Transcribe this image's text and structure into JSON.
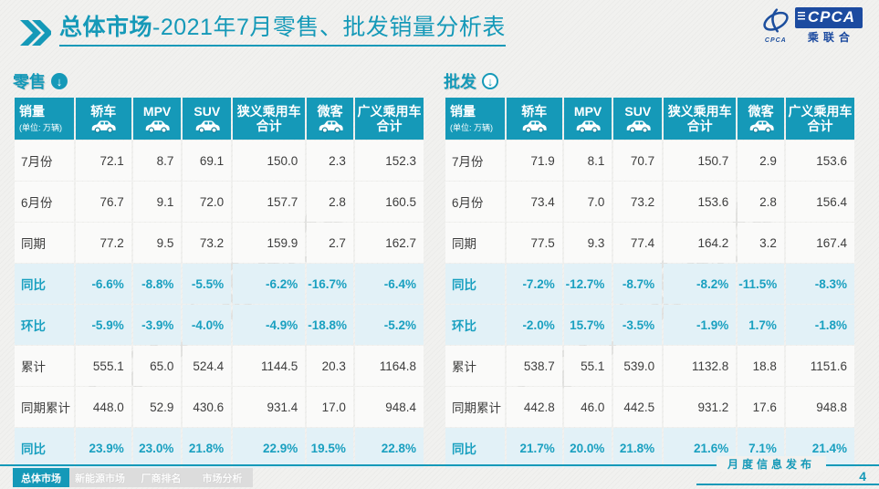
{
  "title": {
    "bold": "总体市场",
    "rest": "-2021年7月零售、批发销量分析表"
  },
  "logo": {
    "swirl_caption": "CPCA",
    "acronym": "CPCA",
    "cn_name": "乘联合"
  },
  "colors": {
    "accent": "#1599b8",
    "percent_row_bg": "#e2f1f7",
    "logo_blue": "#1c4ba0"
  },
  "watermark": "CPCA乘联会",
  "columns": {
    "sales_label": "销量",
    "sales_unit": "(单位: 万辆)",
    "cols": [
      {
        "name": "sedan",
        "label": "轿车",
        "icon": "sedan-car-icon"
      },
      {
        "name": "mpv",
        "label": "MPV",
        "icon": "mpv-car-icon"
      },
      {
        "name": "suv",
        "label": "SUV",
        "icon": "suv-car-icon"
      },
      {
        "name": "narrow-pv-total",
        "label": "狭义乘用车",
        "label2": "合计"
      },
      {
        "name": "microvan",
        "label": "微客",
        "icon": "microvan-icon"
      },
      {
        "name": "broad-pv-total",
        "label": "广义乘用车",
        "label2": "合计"
      }
    ]
  },
  "tables": [
    {
      "id": "retail",
      "section_label": "零售",
      "arrow_icon": "down-arrow-filled-circle-icon",
      "rows": [
        {
          "label": "7月份",
          "type": "normal",
          "values": [
            "72.1",
            "8.7",
            "69.1",
            "150.0",
            "2.3",
            "152.3"
          ]
        },
        {
          "label": "6月份",
          "type": "normal",
          "values": [
            "76.7",
            "9.1",
            "72.0",
            "157.7",
            "2.8",
            "160.5"
          ]
        },
        {
          "label": "同期",
          "type": "normal",
          "values": [
            "77.2",
            "9.5",
            "73.2",
            "159.9",
            "2.7",
            "162.7"
          ]
        },
        {
          "label": "同比",
          "type": "percent",
          "values": [
            "-6.6%",
            "-8.8%",
            "-5.5%",
            "-6.2%",
            "-16.7%",
            "-6.4%"
          ]
        },
        {
          "label": "环比",
          "type": "percent",
          "values": [
            "-5.9%",
            "-3.9%",
            "-4.0%",
            "-4.9%",
            "-18.8%",
            "-5.2%"
          ]
        },
        {
          "label": "累计",
          "type": "normal",
          "values": [
            "555.1",
            "65.0",
            "524.4",
            "1144.5",
            "20.3",
            "1164.8"
          ]
        },
        {
          "label": "同期累计",
          "type": "normal",
          "values": [
            "448.0",
            "52.9",
            "430.6",
            "931.4",
            "17.0",
            "948.4"
          ]
        },
        {
          "label": "同比",
          "type": "percent",
          "values": [
            "23.9%",
            "23.0%",
            "21.8%",
            "22.9%",
            "19.5%",
            "22.8%"
          ]
        }
      ]
    },
    {
      "id": "wholesale",
      "section_label": "批发",
      "arrow_icon": "down-arrow-outline-circle-icon",
      "rows": [
        {
          "label": "7月份",
          "type": "normal",
          "values": [
            "71.9",
            "8.1",
            "70.7",
            "150.7",
            "2.9",
            "153.6"
          ]
        },
        {
          "label": "6月份",
          "type": "normal",
          "values": [
            "73.4",
            "7.0",
            "73.2",
            "153.6",
            "2.8",
            "156.4"
          ]
        },
        {
          "label": "同期",
          "type": "normal",
          "values": [
            "77.5",
            "9.3",
            "77.4",
            "164.2",
            "3.2",
            "167.4"
          ]
        },
        {
          "label": "同比",
          "type": "percent",
          "values": [
            "-7.2%",
            "-12.7%",
            "-8.7%",
            "-8.2%",
            "-11.5%",
            "-8.3%"
          ]
        },
        {
          "label": "环比",
          "type": "percent",
          "values": [
            "-2.0%",
            "15.7%",
            "-3.5%",
            "-1.9%",
            "1.7%",
            "-1.8%"
          ]
        },
        {
          "label": "累计",
          "type": "normal",
          "values": [
            "538.7",
            "55.1",
            "539.0",
            "1132.8",
            "18.8",
            "1151.6"
          ]
        },
        {
          "label": "同期累计",
          "type": "normal",
          "values": [
            "442.8",
            "46.0",
            "442.5",
            "931.2",
            "17.6",
            "948.8"
          ]
        },
        {
          "label": "同比",
          "type": "percent",
          "values": [
            "21.7%",
            "20.0%",
            "21.8%",
            "21.6%",
            "7.1%",
            "21.4%"
          ]
        }
      ]
    }
  ],
  "footer": {
    "tabs": [
      {
        "name": "overall-market",
        "label": "总体市场",
        "active": true
      },
      {
        "name": "nev-market",
        "label": "新能源市场",
        "active": false
      },
      {
        "name": "manufacturer-ranking",
        "label": "厂商排名",
        "active": false
      },
      {
        "name": "market-analysis",
        "label": "市场分析",
        "active": false
      }
    ],
    "publish_label": "月度信息发布",
    "page_number": "4"
  }
}
